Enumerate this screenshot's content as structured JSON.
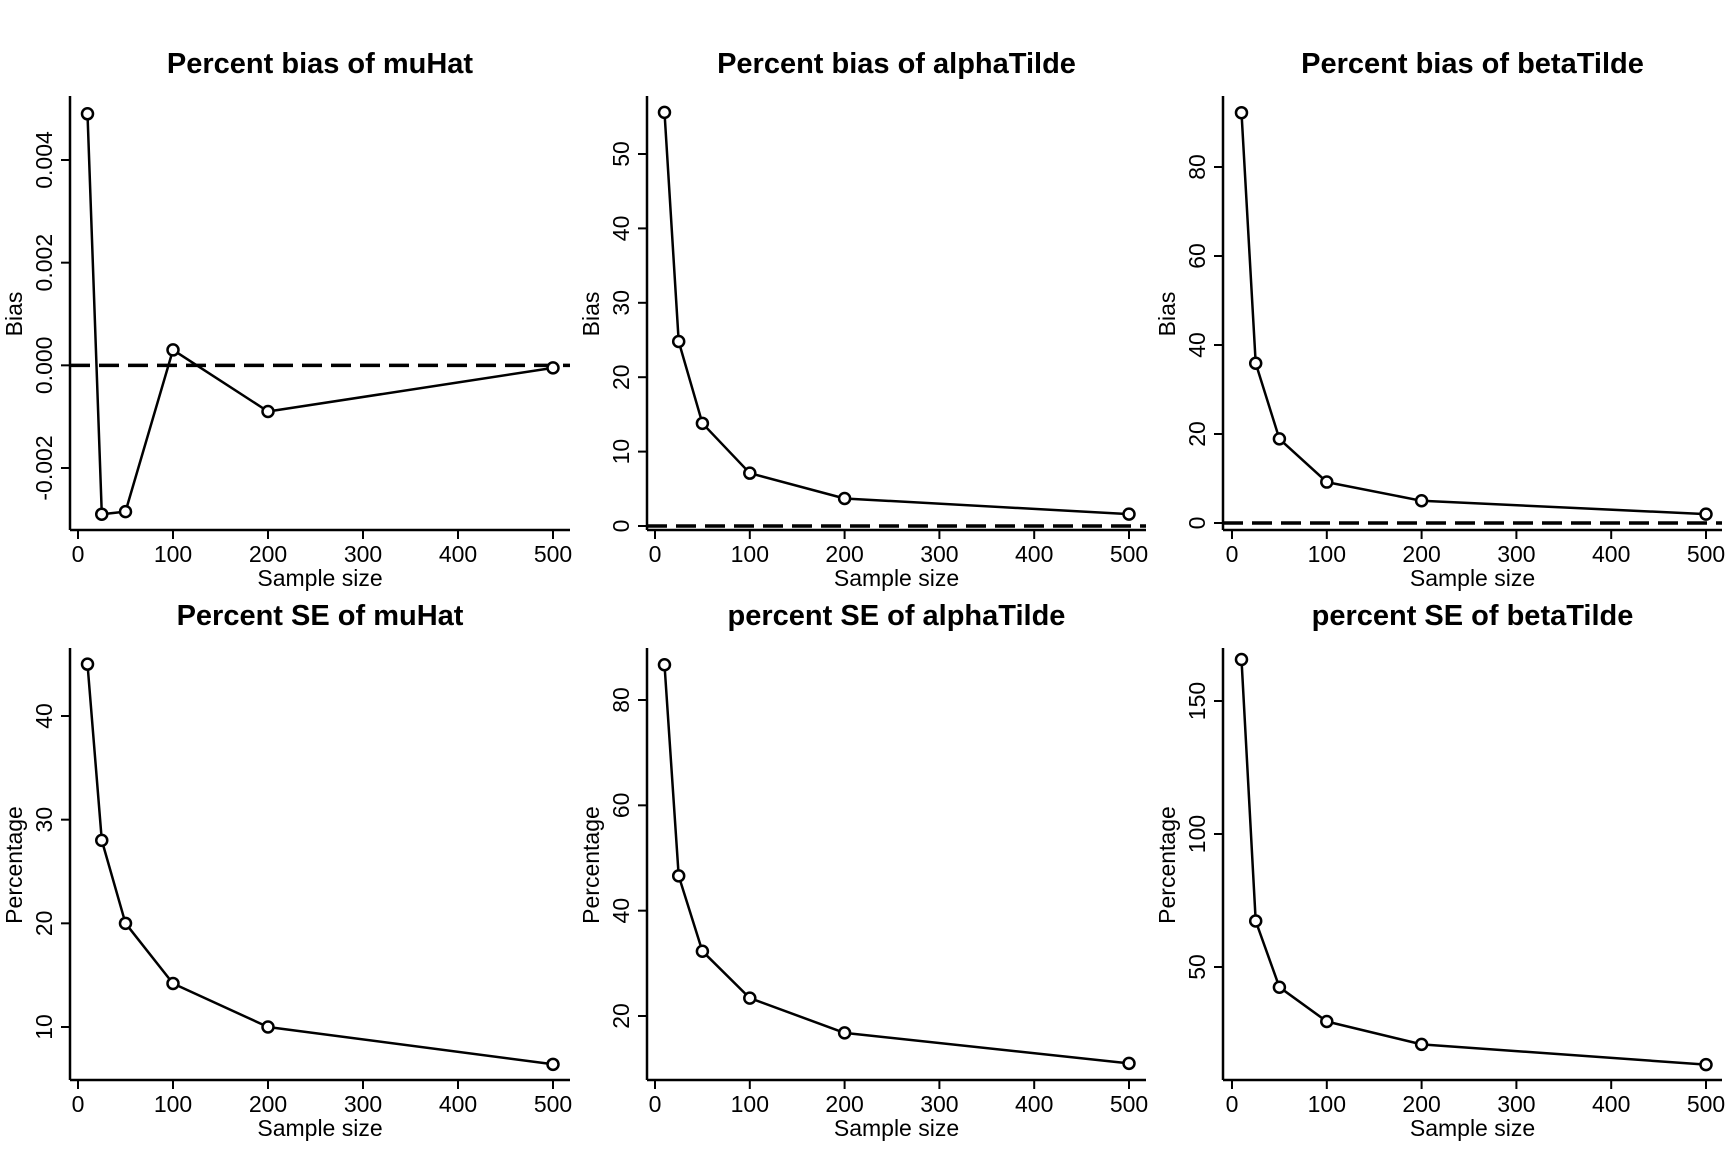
{
  "chart_data": [
    {
      "type": "line",
      "title": "Percent bias of muHat",
      "xlabel": "Sample size",
      "ylabel": "Bias",
      "x": [
        10,
        25,
        50,
        100,
        200,
        500
      ],
      "series": [
        {
          "values": [
            0.0049,
            -0.0029,
            -0.00285,
            0.0003,
            -0.0009,
            -5e-05
          ]
        }
      ],
      "reference_line": 0,
      "xlim": [
        0,
        500
      ],
      "ylim": [
        -0.003,
        0.005
      ],
      "xticks": [
        0,
        100,
        200,
        300,
        400,
        500
      ],
      "yticks": [
        -0.002,
        0.0,
        0.002,
        0.004
      ],
      "xtick_labels": [
        "0",
        "100",
        "200",
        "300",
        "400",
        "500"
      ],
      "ytick_labels": [
        "-0.002",
        "0.000",
        "0.002",
        "0.004"
      ]
    },
    {
      "type": "line",
      "title": "Percent bias of alphaTilde",
      "xlabel": "Sample size",
      "ylabel": "Bias",
      "x": [
        10,
        25,
        50,
        100,
        200,
        500
      ],
      "series": [
        {
          "values": [
            55.6,
            24.8,
            13.8,
            7.1,
            3.7,
            1.6
          ]
        }
      ],
      "reference_line": 0,
      "xlim": [
        0,
        500
      ],
      "ylim": [
        0,
        57
      ],
      "xticks": [
        0,
        100,
        200,
        300,
        400,
        500
      ],
      "yticks": [
        0,
        10,
        20,
        30,
        40,
        50
      ],
      "xtick_labels": [
        "0",
        "100",
        "200",
        "300",
        "400",
        "500"
      ],
      "ytick_labels": [
        "0",
        "10",
        "20",
        "30",
        "40",
        "50"
      ]
    },
    {
      "type": "line",
      "title": "Percent bias of betaTilde",
      "xlabel": "Sample size",
      "ylabel": "Bias",
      "x": [
        10,
        25,
        50,
        100,
        200,
        500
      ],
      "series": [
        {
          "values": [
            92.2,
            35.9,
            18.9,
            9.2,
            5.0,
            2.0
          ]
        }
      ],
      "reference_line": 0,
      "xlim": [
        0,
        500
      ],
      "ylim": [
        0,
        95
      ],
      "xticks": [
        0,
        100,
        200,
        300,
        400,
        500
      ],
      "yticks": [
        0,
        20,
        40,
        60,
        80
      ],
      "xtick_labels": [
        "0",
        "100",
        "200",
        "300",
        "400",
        "500"
      ],
      "ytick_labels": [
        "0",
        "20",
        "40",
        "60",
        "80"
      ]
    },
    {
      "type": "line",
      "title": "Percent SE of muHat",
      "xlabel": "Sample size",
      "ylabel": "Percentage",
      "x": [
        10,
        25,
        50,
        100,
        200,
        500
      ],
      "series": [
        {
          "values": [
            45.0,
            28.0,
            20.0,
            14.2,
            10.0,
            6.4
          ]
        }
      ],
      "xlim": [
        0,
        500
      ],
      "ylim": [
        6,
        45
      ],
      "xticks": [
        0,
        100,
        200,
        300,
        400,
        500
      ],
      "yticks": [
        10,
        20,
        30,
        40
      ],
      "xtick_labels": [
        "0",
        "100",
        "200",
        "300",
        "400",
        "500"
      ],
      "ytick_labels": [
        "10",
        "20",
        "30",
        "40"
      ]
    },
    {
      "type": "line",
      "title": "percent SE of alphaTilde",
      "xlabel": "Sample size",
      "ylabel": "Percentage",
      "x": [
        10,
        25,
        50,
        100,
        200,
        500
      ],
      "series": [
        {
          "values": [
            86.7,
            46.6,
            32.3,
            23.4,
            16.8,
            11.0
          ]
        }
      ],
      "xlim": [
        0,
        500
      ],
      "ylim": [
        11,
        87
      ],
      "xticks": [
        0,
        100,
        200,
        300,
        400,
        500
      ],
      "yticks": [
        20,
        40,
        60,
        80
      ],
      "xtick_labels": [
        "0",
        "100",
        "200",
        "300",
        "400",
        "500"
      ],
      "ytick_labels": [
        "20",
        "40",
        "60",
        "80"
      ]
    },
    {
      "type": "line",
      "title": "percent SE of betaTilde",
      "xlabel": "Sample size",
      "ylabel": "Percentage",
      "x": [
        10,
        25,
        50,
        100,
        200,
        500
      ],
      "series": [
        {
          "values": [
            165.6,
            67.3,
            42.4,
            29.5,
            20.9,
            13.3
          ]
        }
      ],
      "xlim": [
        0,
        500
      ],
      "ylim": [
        13,
        166
      ],
      "xticks": [
        0,
        100,
        200,
        300,
        400,
        500
      ],
      "yticks": [
        50,
        100,
        150
      ],
      "xtick_labels": [
        "0",
        "100",
        "200",
        "300",
        "400",
        "500"
      ],
      "ytick_labels": [
        "50",
        "100",
        "150"
      ]
    }
  ]
}
